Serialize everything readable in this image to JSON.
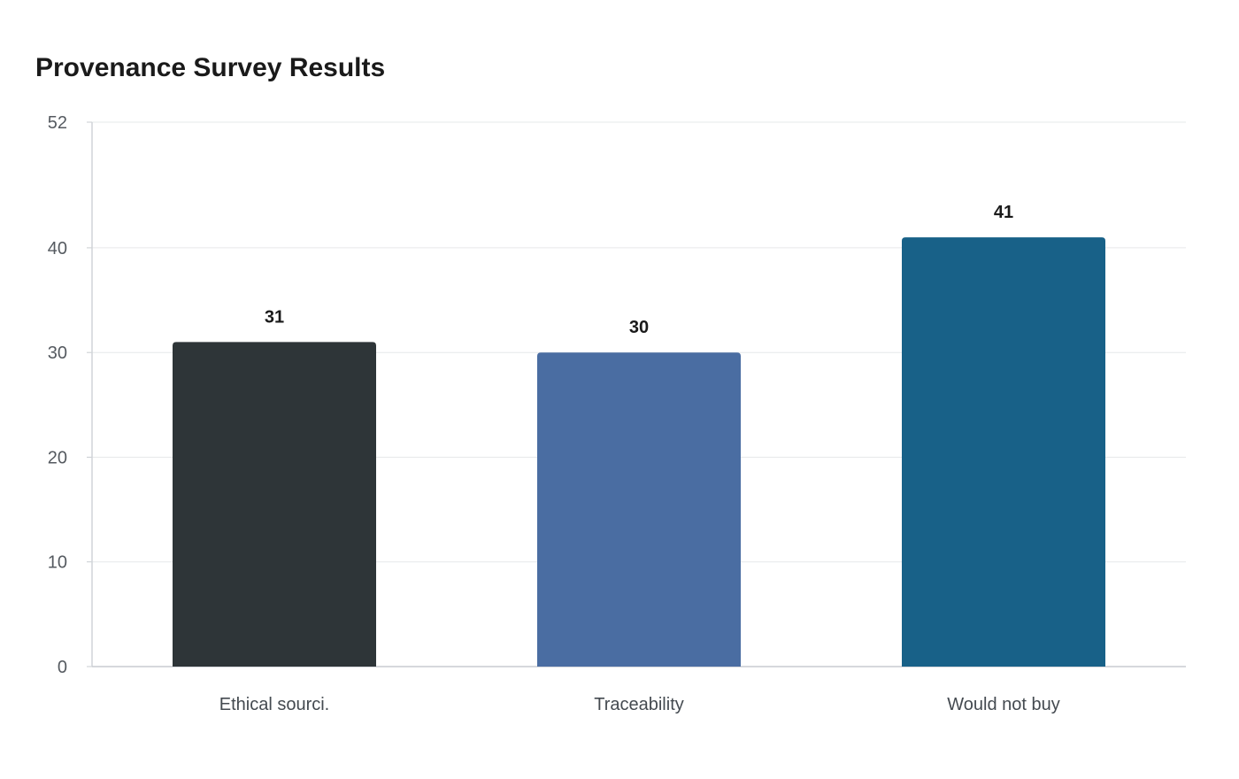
{
  "chart_data": {
    "type": "bar",
    "title": "Provenance Survey Results",
    "xlabel": "",
    "ylabel": "",
    "categories": [
      "Ethical sourci.",
      "Traceability",
      "Would not buy"
    ],
    "values": [
      31,
      30,
      41
    ],
    "colors": [
      "#2e3538",
      "#4a6da2",
      "#186188"
    ],
    "ylim": [
      0,
      52
    ],
    "yticks": [
      0,
      10,
      20,
      30,
      40,
      52
    ],
    "grid": true,
    "legend": "none"
  }
}
